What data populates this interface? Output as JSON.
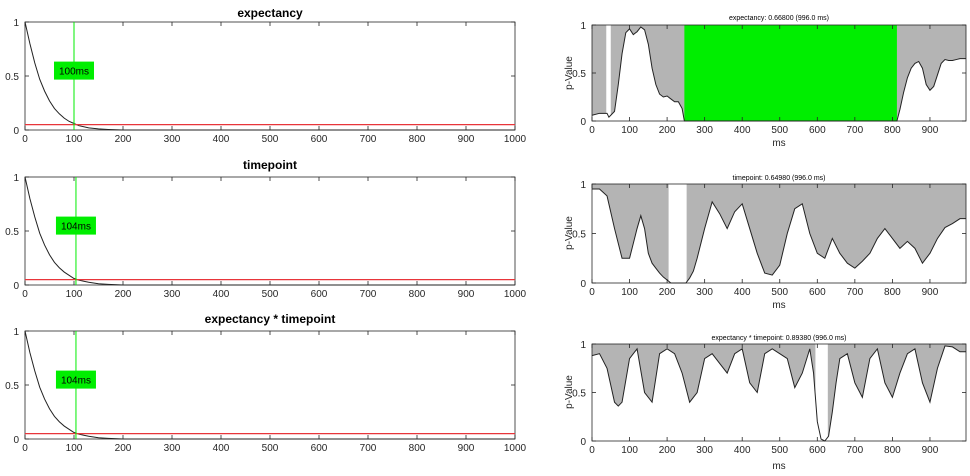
{
  "chart_data": [
    {
      "type": "line",
      "title": "expectancy",
      "xlabel": "",
      "ylabel": "",
      "xlim": [
        0,
        1000
      ],
      "ylim": [
        0,
        1
      ],
      "xticks": [
        "0",
        "100",
        "200",
        "300",
        "400",
        "500",
        "600",
        "700",
        "800",
        "900",
        "1000"
      ],
      "yticks": [
        "0",
        "0.5",
        "1"
      ],
      "threshold": 0.05,
      "threshold_color": "#e8353a",
      "marker_x": 100,
      "marker_label": "100ms",
      "marker_color": "#00ee00",
      "decay_scale_ms": 40,
      "series": [
        {
          "color": "#222222",
          "x": [
            0,
            10,
            20,
            30,
            40,
            50,
            60,
            70,
            80,
            90,
            100,
            110,
            120,
            130,
            150,
            170,
            200,
            250,
            300,
            400,
            500,
            600,
            700,
            800,
            900,
            1000
          ],
          "y": [
            1.0,
            0.8,
            0.62,
            0.47,
            0.36,
            0.27,
            0.2,
            0.15,
            0.11,
            0.08,
            0.06,
            0.04,
            0.03,
            0.02,
            0.01,
            0.005,
            0.0,
            0.0,
            0.0,
            0.0,
            0.0,
            0.0,
            0.0,
            0.0,
            0.0,
            0.0
          ]
        }
      ]
    },
    {
      "type": "line",
      "title": "timepoint",
      "xlabel": "",
      "ylabel": "",
      "xlim": [
        0,
        1000
      ],
      "ylim": [
        0,
        1
      ],
      "xticks": [
        "0",
        "100",
        "200",
        "300",
        "400",
        "500",
        "600",
        "700",
        "800",
        "900",
        "1000"
      ],
      "yticks": [
        "0",
        "0.5",
        "1"
      ],
      "threshold": 0.05,
      "threshold_color": "#e8353a",
      "marker_x": 104,
      "marker_label": "104ms",
      "marker_color": "#00ee00",
      "series": [
        {
          "color": "#222222",
          "x": [
            0,
            10,
            20,
            30,
            40,
            50,
            60,
            70,
            80,
            90,
            100,
            110,
            120,
            130,
            150,
            170,
            200,
            250,
            300,
            400,
            500,
            600,
            700,
            800,
            900,
            1000
          ],
          "y": [
            1.0,
            0.8,
            0.63,
            0.48,
            0.37,
            0.28,
            0.21,
            0.16,
            0.12,
            0.09,
            0.06,
            0.045,
            0.035,
            0.025,
            0.012,
            0.006,
            0.0,
            0.0,
            0.0,
            0.0,
            0.0,
            0.0,
            0.0,
            0.0,
            0.0,
            0.0
          ]
        }
      ]
    },
    {
      "type": "line",
      "title": "expectancy * timepoint",
      "xlabel": "",
      "ylabel": "",
      "xlim": [
        0,
        1000
      ],
      "ylim": [
        0,
        1
      ],
      "xticks": [
        "0",
        "100",
        "200",
        "300",
        "400",
        "500",
        "600",
        "700",
        "800",
        "900",
        "1000"
      ],
      "yticks": [
        "0",
        "0.5",
        "1"
      ],
      "threshold": 0.05,
      "threshold_color": "#e8353a",
      "marker_x": 104,
      "marker_label": "104ms",
      "marker_color": "#00ee00",
      "series": [
        {
          "color": "#222222",
          "x": [
            0,
            10,
            20,
            30,
            40,
            50,
            60,
            70,
            80,
            90,
            100,
            110,
            120,
            130,
            150,
            170,
            200,
            250,
            300,
            400,
            500,
            600,
            700,
            800,
            900,
            1000
          ],
          "y": [
            1.0,
            0.8,
            0.63,
            0.48,
            0.37,
            0.28,
            0.21,
            0.16,
            0.12,
            0.09,
            0.06,
            0.045,
            0.035,
            0.025,
            0.012,
            0.006,
            0.0,
            0.0,
            0.0,
            0.0,
            0.0,
            0.0,
            0.0,
            0.0,
            0.0,
            0.0
          ]
        }
      ]
    },
    {
      "type": "area",
      "title": "expectancy: 0.66800 (996.0 ms)",
      "xlabel": "ms",
      "ylabel": "p-Value",
      "xlim": [
        0,
        996
      ],
      "ylim": [
        0,
        1
      ],
      "xticks": [
        "0",
        "100",
        "200",
        "300",
        "400",
        "500",
        "600",
        "700",
        "800",
        "900"
      ],
      "yticks": [
        "0",
        "0.5",
        "1"
      ],
      "background_color": "#b4b4b4",
      "significant_color": "#00ee00",
      "significant_intervals": [
        [
          246,
          812
        ]
      ],
      "gap_intervals": [
        [
          38,
          50
        ]
      ],
      "series": [
        {
          "color": "#222222",
          "x": [
            0,
            20,
            40,
            45,
            50,
            60,
            70,
            80,
            90,
            100,
            110,
            120,
            130,
            140,
            150,
            160,
            170,
            180,
            190,
            200,
            210,
            220,
            230,
            240,
            246,
            812,
            820,
            830,
            840,
            850,
            860,
            870,
            880,
            890,
            900,
            910,
            920,
            930,
            940,
            950,
            960,
            970,
            980,
            996
          ],
          "y": [
            0.06,
            0.08,
            0.08,
            0.04,
            0.06,
            0.1,
            0.38,
            0.7,
            0.92,
            0.96,
            0.9,
            0.93,
            0.98,
            0.95,
            0.8,
            0.55,
            0.38,
            0.28,
            0.25,
            0.26,
            0.23,
            0.2,
            0.2,
            0.13,
            0.0,
            0.0,
            0.12,
            0.3,
            0.45,
            0.55,
            0.6,
            0.62,
            0.55,
            0.38,
            0.32,
            0.36,
            0.48,
            0.6,
            0.64,
            0.63,
            0.63,
            0.64,
            0.65,
            0.65
          ]
        }
      ]
    },
    {
      "type": "area",
      "title": "timepoint: 0.64980 (996.0 ms)",
      "xlabel": "ms",
      "ylabel": "p-Value",
      "xlim": [
        0,
        996
      ],
      "ylim": [
        0,
        1
      ],
      "xticks": [
        "0",
        "100",
        "200",
        "300",
        "400",
        "500",
        "600",
        "700",
        "800",
        "900"
      ],
      "yticks": [
        "0",
        "0.5",
        "1"
      ],
      "background_color": "#b4b4b4",
      "significant_color": "#00ee00",
      "significant_intervals": [],
      "gap_intervals": [
        [
          204,
          252
        ]
      ],
      "series": [
        {
          "color": "#222222",
          "x": [
            0,
            20,
            40,
            60,
            80,
            100,
            120,
            130,
            140,
            150,
            160,
            170,
            180,
            190,
            200,
            210,
            220,
            230,
            240,
            250,
            260,
            270,
            280,
            300,
            320,
            340,
            360,
            380,
            400,
            420,
            440,
            460,
            480,
            500,
            520,
            540,
            560,
            580,
            600,
            620,
            640,
            660,
            680,
            700,
            720,
            740,
            760,
            780,
            800,
            820,
            840,
            860,
            880,
            900,
            920,
            940,
            960,
            980,
            996
          ],
          "y": [
            0.95,
            0.95,
            0.88,
            0.55,
            0.25,
            0.25,
            0.55,
            0.68,
            0.55,
            0.3,
            0.2,
            0.15,
            0.1,
            0.06,
            0.03,
            0.0,
            0.0,
            0.0,
            0.0,
            0.0,
            0.05,
            0.12,
            0.25,
            0.55,
            0.82,
            0.7,
            0.55,
            0.72,
            0.8,
            0.55,
            0.3,
            0.1,
            0.08,
            0.18,
            0.5,
            0.75,
            0.8,
            0.5,
            0.3,
            0.25,
            0.45,
            0.3,
            0.2,
            0.15,
            0.22,
            0.3,
            0.45,
            0.55,
            0.45,
            0.35,
            0.42,
            0.35,
            0.2,
            0.3,
            0.45,
            0.56,
            0.6,
            0.65,
            0.65
          ]
        }
      ]
    },
    {
      "type": "area",
      "title": "expectancy * timepoint: 0.89380 (996.0 ms)",
      "xlabel": "ms",
      "ylabel": "p-Value",
      "xlim": [
        0,
        996
      ],
      "ylim": [
        0,
        1
      ],
      "xticks": [
        "0",
        "100",
        "200",
        "300",
        "400",
        "500",
        "600",
        "700",
        "800",
        "900"
      ],
      "yticks": [
        "0",
        "0.5",
        "1"
      ],
      "background_color": "#b4b4b4",
      "significant_color": "#00ee00",
      "significant_intervals": [],
      "gap_intervals": [
        [
          595,
          628
        ]
      ],
      "series": [
        {
          "color": "#222222",
          "x": [
            0,
            20,
            40,
            60,
            70,
            80,
            100,
            120,
            140,
            160,
            180,
            200,
            220,
            240,
            260,
            280,
            300,
            320,
            340,
            360,
            380,
            400,
            420,
            440,
            460,
            480,
            500,
            520,
            540,
            560,
            580,
            590,
            600,
            610,
            620,
            630,
            640,
            650,
            660,
            680,
            700,
            720,
            740,
            760,
            780,
            800,
            820,
            840,
            860,
            880,
            900,
            920,
            940,
            960,
            980,
            996
          ],
          "y": [
            0.88,
            0.9,
            0.75,
            0.4,
            0.36,
            0.4,
            0.85,
            0.95,
            0.5,
            0.4,
            0.9,
            0.95,
            0.9,
            0.7,
            0.4,
            0.5,
            0.85,
            0.9,
            0.8,
            0.7,
            0.9,
            0.95,
            0.6,
            0.5,
            0.9,
            0.95,
            0.9,
            0.85,
            0.55,
            0.7,
            0.95,
            0.7,
            0.2,
            0.02,
            0.0,
            0.05,
            0.3,
            0.6,
            0.85,
            0.9,
            0.6,
            0.45,
            0.85,
            0.95,
            0.6,
            0.45,
            0.7,
            0.9,
            0.95,
            0.6,
            0.4,
            0.75,
            0.98,
            0.97,
            0.92,
            0.92
          ]
        }
      ]
    }
  ]
}
